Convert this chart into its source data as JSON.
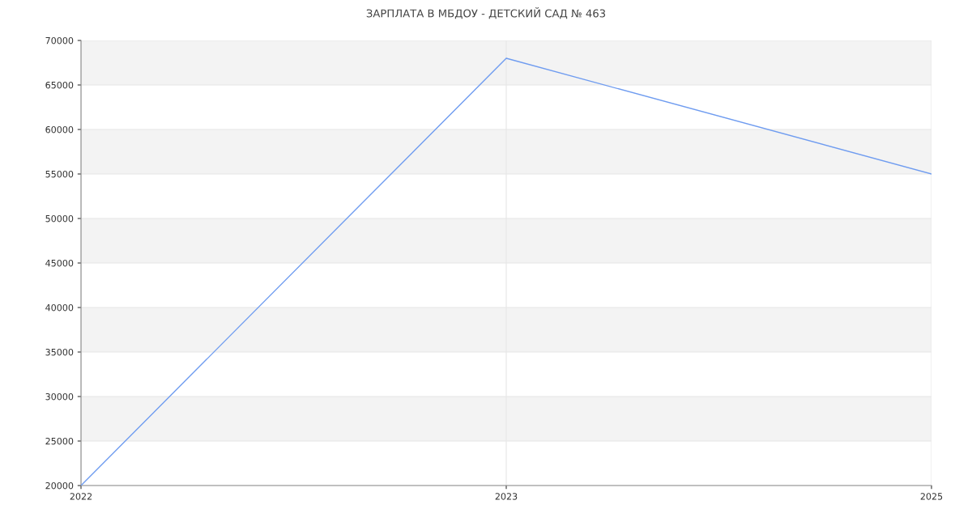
{
  "chart_data": {
    "type": "line",
    "title": "ЗАРПЛАТА В МБДОУ - ДЕТСКИЙ САД № 463",
    "categories": [
      "2022",
      "2023",
      "2025"
    ],
    "series": [
      {
        "color": "#6f9cf0",
        "values": [
          20000,
          68000,
          55000
        ]
      }
    ],
    "ylim": [
      20000,
      70000
    ],
    "yticks": [
      20000,
      25000,
      30000,
      35000,
      40000,
      45000,
      50000,
      55000,
      60000,
      65000,
      70000
    ],
    "grid": true,
    "marker": "none",
    "line_style": "solid",
    "bands": [
      {
        "axis": "y",
        "from": 25000,
        "to": 30000,
        "color": "#f3f3f3"
      },
      {
        "axis": "y",
        "from": 35000,
        "to": 40000,
        "color": "#f3f3f3"
      },
      {
        "axis": "y",
        "from": 45000,
        "to": 50000,
        "color": "#f3f3f3"
      },
      {
        "axis": "y",
        "from": 55000,
        "to": 60000,
        "color": "#f3f3f3"
      },
      {
        "axis": "y",
        "from": 65000,
        "to": 70000,
        "color": "#f3f3f3"
      }
    ]
  }
}
